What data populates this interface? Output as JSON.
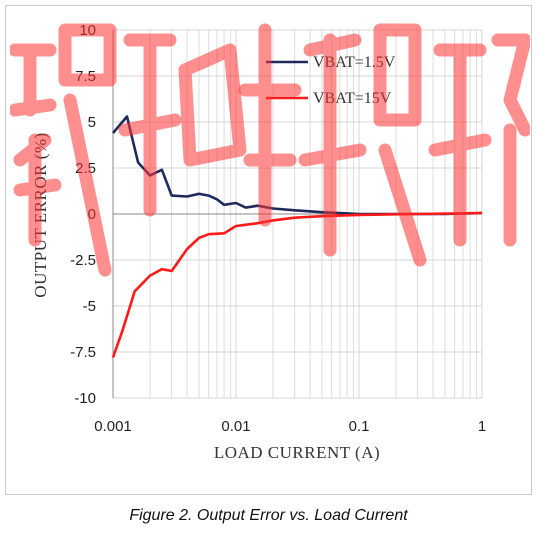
{
  "chart_data": {
    "type": "line",
    "x_scale": "log",
    "xlim": [
      0.001,
      1
    ],
    "ylim": [
      -10,
      10
    ],
    "x_ticks": [
      0.001,
      0.01,
      0.1,
      1
    ],
    "x_tick_labels": [
      "0.001",
      "0.01",
      "0.1",
      "1"
    ],
    "y_ticks": [
      10,
      7.5,
      5,
      2.5,
      0,
      -2.5,
      -5,
      -7.5,
      -10
    ],
    "y_tick_labels": [
      "10",
      "7.5",
      "5",
      "2.5",
      "0",
      "-2.5",
      "-5",
      "-7.5",
      "-10"
    ],
    "xlabel": "LOAD CURRENT (A)",
    "ylabel": "OUTPUT ERROR (%)",
    "grid": true,
    "legend_position": "top-right",
    "series": [
      {
        "name": "VBAT=1.5V",
        "color": "#1f2a5c",
        "points": [
          [
            0.001,
            4.4
          ],
          [
            0.0013,
            5.3
          ],
          [
            0.0016,
            2.8
          ],
          [
            0.002,
            2.1
          ],
          [
            0.0025,
            2.4
          ],
          [
            0.003,
            1.0
          ],
          [
            0.004,
            0.95
          ],
          [
            0.005,
            1.1
          ],
          [
            0.006,
            1.0
          ],
          [
            0.007,
            0.8
          ],
          [
            0.008,
            0.5
          ],
          [
            0.01,
            0.6
          ],
          [
            0.012,
            0.35
          ],
          [
            0.015,
            0.45
          ],
          [
            0.02,
            0.3
          ],
          [
            0.03,
            0.2
          ],
          [
            0.05,
            0.1
          ],
          [
            0.07,
            0.05
          ],
          [
            0.1,
            0.0
          ],
          [
            0.2,
            0.0
          ],
          [
            0.5,
            0.0
          ],
          [
            1,
            0.05
          ]
        ]
      },
      {
        "name": "VBAT=15V",
        "color": "#ff1a1a",
        "points": [
          [
            0.001,
            -7.8
          ],
          [
            0.0012,
            -6.3
          ],
          [
            0.0015,
            -4.2
          ],
          [
            0.002,
            -3.35
          ],
          [
            0.0025,
            -3.0
          ],
          [
            0.003,
            -3.1
          ],
          [
            0.004,
            -1.9
          ],
          [
            0.005,
            -1.3
          ],
          [
            0.006,
            -1.1
          ],
          [
            0.008,
            -1.05
          ],
          [
            0.01,
            -0.65
          ],
          [
            0.015,
            -0.5
          ],
          [
            0.02,
            -0.35
          ],
          [
            0.03,
            -0.2
          ],
          [
            0.05,
            -0.12
          ],
          [
            0.1,
            -0.05
          ],
          [
            0.3,
            0.0
          ],
          [
            1,
            0.05
          ]
        ]
      }
    ]
  },
  "caption": "Figure 2. Output Error vs. Load Current",
  "colors": {
    "watermark": "#ff3333",
    "grid": "#d4d4d4",
    "frame": "#c8c8c8"
  }
}
